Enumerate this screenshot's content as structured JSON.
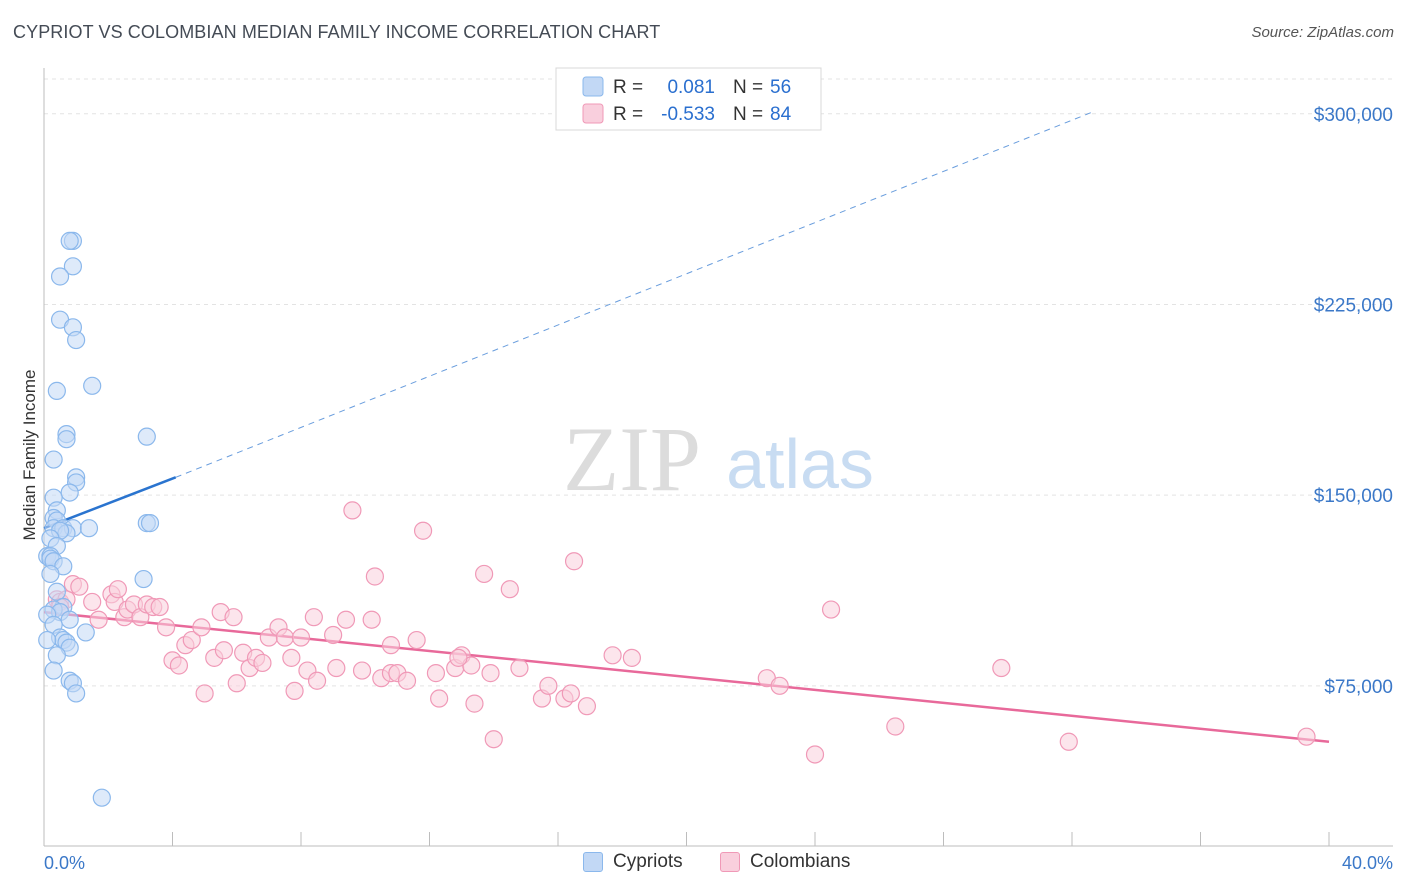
{
  "title": "CYPRIOT VS COLOMBIAN MEDIAN FAMILY INCOME CORRELATION CHART",
  "source": "Source: ZipAtlas.com",
  "watermark": {
    "zip": "ZIP",
    "atlas": "atlas"
  },
  "legend": {
    "rows": [
      {
        "r_label": "R =",
        "r_value": "0.081",
        "n_label": "N =",
        "n_value": "56"
      },
      {
        "r_label": "R =",
        "r_value": "-0.533",
        "n_label": "N =",
        "n_value": "84"
      }
    ]
  },
  "colors": {
    "blue": "#8bb8ec",
    "blue_fill": "#c2d8f5",
    "blue_line": "#2a74cf",
    "pink": "#f099b7",
    "pink_fill": "#f9cfdd",
    "pink_line": "#e8699a",
    "axis_text": "#3b78c8"
  },
  "chart_data": {
    "type": "scatter",
    "title": "CYPRIOT VS COLOMBIAN MEDIAN FAMILY INCOME CORRELATION CHART",
    "xlabel": "",
    "ylabel": "Median Family Income",
    "xlim": [
      0,
      40
    ],
    "ylim": [
      12000,
      318000
    ],
    "x_tick_labels": [
      "0.0%",
      "40.0%"
    ],
    "y_ticks": [
      75000,
      150000,
      225000,
      300000
    ],
    "y_tick_labels": [
      "$75,000",
      "$150,000",
      "$225,000",
      "$300,000"
    ],
    "series": [
      {
        "name": "Cypriots",
        "r": 0.081,
        "n": 56,
        "trend": {
          "x0": 0,
          "y0": 137000,
          "x1": 4.1,
          "y1": 157000,
          "dash_to_x": 32.7,
          "dash_to_y": 301000
        },
        "points": [
          [
            0.9,
            250000
          ],
          [
            0.8,
            250000
          ],
          [
            0.9,
            240000
          ],
          [
            0.5,
            236000
          ],
          [
            0.5,
            219000
          ],
          [
            0.9,
            216000
          ],
          [
            1.0,
            211000
          ],
          [
            1.5,
            193000
          ],
          [
            0.4,
            191000
          ],
          [
            0.7,
            174000
          ],
          [
            0.7,
            172000
          ],
          [
            3.2,
            173000
          ],
          [
            0.3,
            164000
          ],
          [
            1.0,
            157000
          ],
          [
            1.0,
            155000
          ],
          [
            0.8,
            151000
          ],
          [
            0.3,
            149000
          ],
          [
            0.4,
            144000
          ],
          [
            0.3,
            141000
          ],
          [
            0.4,
            140000
          ],
          [
            3.2,
            139000
          ],
          [
            3.3,
            139000
          ],
          [
            0.3,
            137000
          ],
          [
            0.6,
            137000
          ],
          [
            0.9,
            137000
          ],
          [
            1.4,
            137000
          ],
          [
            0.7,
            135000
          ],
          [
            0.5,
            136000
          ],
          [
            0.2,
            133000
          ],
          [
            0.4,
            130000
          ],
          [
            0.1,
            126000
          ],
          [
            0.2,
            126000
          ],
          [
            0.2,
            125000
          ],
          [
            0.3,
            124000
          ],
          [
            0.6,
            122000
          ],
          [
            0.2,
            119000
          ],
          [
            3.1,
            117000
          ],
          [
            0.4,
            112000
          ],
          [
            0.6,
            106000
          ],
          [
            0.3,
            105000
          ],
          [
            0.5,
            104000
          ],
          [
            0.1,
            103000
          ],
          [
            0.8,
            101000
          ],
          [
            0.3,
            99000
          ],
          [
            1.3,
            96000
          ],
          [
            0.5,
            94000
          ],
          [
            0.6,
            93000
          ],
          [
            0.7,
            92000
          ],
          [
            0.1,
            93000
          ],
          [
            0.8,
            90000
          ],
          [
            0.4,
            87000
          ],
          [
            0.3,
            81000
          ],
          [
            0.8,
            77000
          ],
          [
            0.9,
            76000
          ],
          [
            1.0,
            72000
          ],
          [
            1.8,
            31000
          ]
        ]
      },
      {
        "name": "Colombians",
        "r": -0.533,
        "n": 84,
        "trend": {
          "x0": 0,
          "y0": 104000,
          "x1": 40,
          "y1": 53000
        },
        "points": [
          [
            0.4,
            109000
          ],
          [
            0.5,
            108000
          ],
          [
            0.7,
            109000
          ],
          [
            0.5,
            106000
          ],
          [
            0.9,
            115000
          ],
          [
            1.1,
            114000
          ],
          [
            1.5,
            108000
          ],
          [
            1.7,
            101000
          ],
          [
            2.1,
            111000
          ],
          [
            2.2,
            108000
          ],
          [
            2.3,
            113000
          ],
          [
            2.5,
            102000
          ],
          [
            2.6,
            105000
          ],
          [
            2.8,
            107000
          ],
          [
            3.0,
            102000
          ],
          [
            3.2,
            107000
          ],
          [
            3.4,
            106000
          ],
          [
            3.6,
            106000
          ],
          [
            3.8,
            98000
          ],
          [
            4.0,
            85000
          ],
          [
            4.2,
            83000
          ],
          [
            4.4,
            91000
          ],
          [
            4.6,
            93000
          ],
          [
            4.9,
            98000
          ],
          [
            5.0,
            72000
          ],
          [
            5.3,
            86000
          ],
          [
            5.5,
            104000
          ],
          [
            5.6,
            89000
          ],
          [
            5.9,
            102000
          ],
          [
            6.0,
            76000
          ],
          [
            6.2,
            88000
          ],
          [
            6.4,
            82000
          ],
          [
            6.6,
            86000
          ],
          [
            6.8,
            84000
          ],
          [
            7.0,
            94000
          ],
          [
            7.3,
            98000
          ],
          [
            7.5,
            94000
          ],
          [
            7.7,
            86000
          ],
          [
            7.8,
            73000
          ],
          [
            8.0,
            94000
          ],
          [
            8.2,
            81000
          ],
          [
            8.4,
            102000
          ],
          [
            8.5,
            77000
          ],
          [
            9.0,
            95000
          ],
          [
            9.1,
            82000
          ],
          [
            9.4,
            101000
          ],
          [
            9.6,
            144000
          ],
          [
            9.9,
            81000
          ],
          [
            10.2,
            101000
          ],
          [
            10.3,
            118000
          ],
          [
            10.5,
            78000
          ],
          [
            10.8,
            91000
          ],
          [
            10.8,
            80000
          ],
          [
            11.0,
            80000
          ],
          [
            11.3,
            77000
          ],
          [
            11.6,
            93000
          ],
          [
            11.8,
            136000
          ],
          [
            12.2,
            80000
          ],
          [
            12.3,
            70000
          ],
          [
            12.8,
            82000
          ],
          [
            13.0,
            87000
          ],
          [
            13.3,
            83000
          ],
          [
            12.9,
            86000
          ],
          [
            13.4,
            68000
          ],
          [
            13.7,
            119000
          ],
          [
            13.9,
            80000
          ],
          [
            14.0,
            54000
          ],
          [
            14.5,
            113000
          ],
          [
            14.8,
            82000
          ],
          [
            15.5,
            70000
          ],
          [
            15.7,
            75000
          ],
          [
            16.2,
            70000
          ],
          [
            16.4,
            72000
          ],
          [
            16.5,
            124000
          ],
          [
            16.9,
            67000
          ],
          [
            17.7,
            87000
          ],
          [
            18.3,
            86000
          ],
          [
            22.5,
            78000
          ],
          [
            22.9,
            75000
          ],
          [
            24.0,
            48000
          ],
          [
            24.5,
            105000
          ],
          [
            26.5,
            59000
          ],
          [
            29.8,
            82000
          ],
          [
            31.9,
            53000
          ],
          [
            39.3,
            55000
          ]
        ]
      }
    ]
  }
}
